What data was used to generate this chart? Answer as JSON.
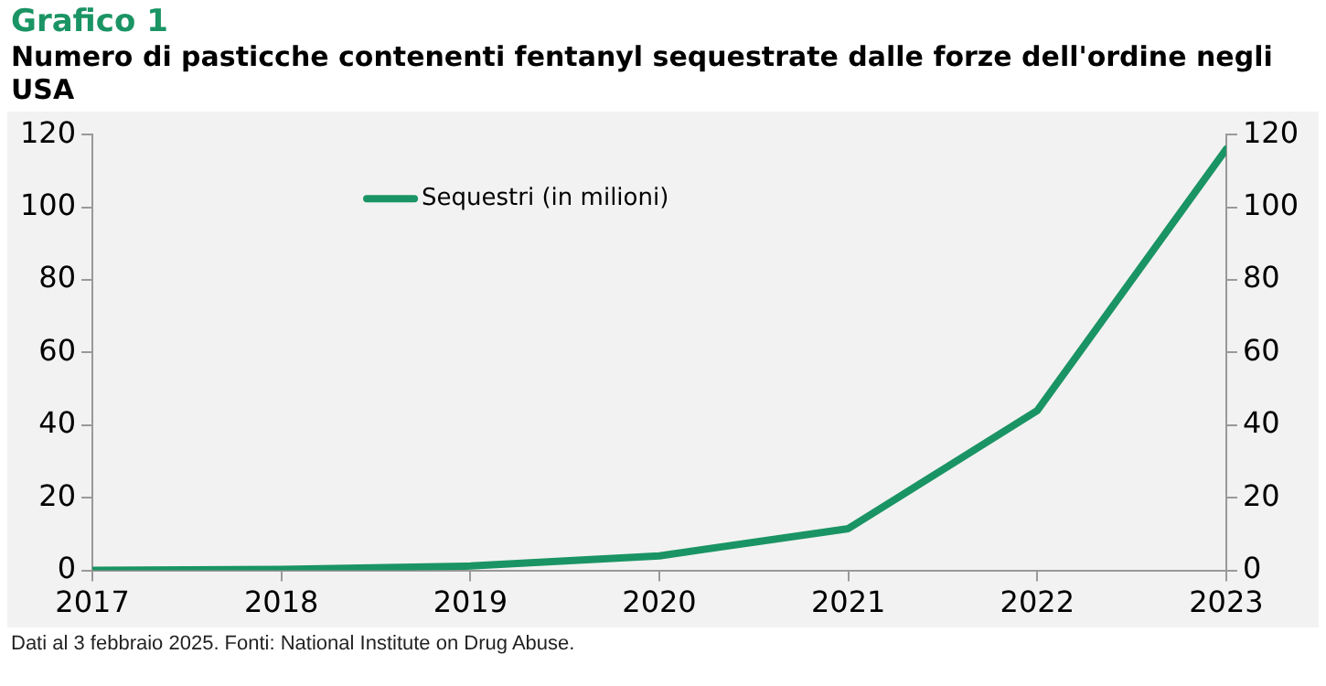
{
  "chart_data": {
    "type": "line",
    "title": "Grafico 1",
    "subtitle": "Numero di pasticche contenenti fentanyl sequestrate dalle forze dell'ordine negli USA",
    "x": [
      2017,
      2018,
      2019,
      2020,
      2021,
      2022,
      2023
    ],
    "series": [
      {
        "name": "Sequestri (in milioni)",
        "color": "#1a9464",
        "values": [
          0,
          0.3,
          1.2,
          4,
          11.5,
          44,
          116
        ]
      }
    ],
    "xlim": [
      2017,
      2023
    ],
    "xticks": [
      2017,
      2018,
      2019,
      2020,
      2021,
      2022,
      2023
    ],
    "ylim": [
      0,
      120
    ],
    "yticks": [
      0,
      20,
      40,
      60,
      80,
      100,
      120
    ],
    "y2lim": [
      0,
      120
    ],
    "y2ticks": [
      0,
      20,
      40,
      60,
      80,
      100,
      120
    ],
    "grid": false,
    "legend": "top left",
    "marker": "none",
    "line_style": "solid",
    "annotations": [
      "Dati al 3 febbraio 2025. Fonti: National Institute on Drug Abuse."
    ]
  }
}
